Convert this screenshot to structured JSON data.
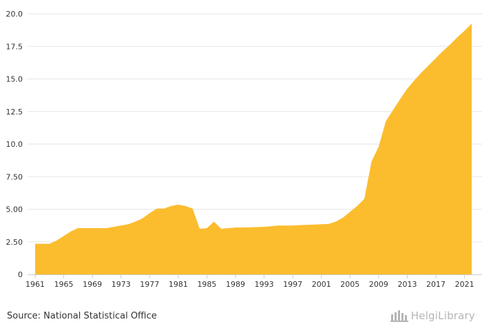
{
  "chart_data": {
    "type": "area",
    "title": "",
    "xlabel": "",
    "ylabel": "",
    "x": [
      1961,
      1962,
      1963,
      1964,
      1965,
      1966,
      1967,
      1968,
      1969,
      1970,
      1971,
      1972,
      1973,
      1974,
      1975,
      1976,
      1977,
      1978,
      1979,
      1980,
      1981,
      1982,
      1983,
      1984,
      1985,
      1986,
      1987,
      1988,
      1989,
      1990,
      1991,
      1992,
      1993,
      1994,
      1995,
      1996,
      1997,
      1998,
      1999,
      2000,
      2001,
      2002,
      2003,
      2004,
      2005,
      2006,
      2007,
      2008,
      2009,
      2010,
      2011,
      2012,
      2013,
      2014,
      2015,
      2016,
      2017,
      2018,
      2019,
      2020,
      2021,
      2022
    ],
    "series": [
      {
        "values": [
          2.35,
          2.35,
          2.35,
          2.6,
          2.95,
          3.3,
          3.55,
          3.55,
          3.55,
          3.55,
          3.55,
          3.65,
          3.75,
          3.85,
          4.05,
          4.3,
          4.7,
          5.05,
          5.05,
          5.25,
          5.35,
          5.25,
          5.05,
          3.5,
          3.55,
          4.05,
          3.5,
          3.55,
          3.6,
          3.6,
          3.62,
          3.63,
          3.65,
          3.7,
          3.75,
          3.75,
          3.75,
          3.78,
          3.8,
          3.82,
          3.85,
          3.87,
          4.05,
          4.35,
          4.8,
          5.25,
          5.8,
          8.65,
          9.8,
          11.75,
          12.6,
          13.45,
          14.25,
          14.9,
          15.5,
          16.05,
          16.6,
          17.15,
          17.65,
          18.2,
          18.7,
          19.25
        ]
      }
    ],
    "color": "#fbbd2e",
    "xlim": [
      1961,
      2022
    ],
    "ylim": [
      0,
      20
    ],
    "y_ticks": [
      0,
      2.5,
      5,
      7.5,
      10,
      12.5,
      15,
      17.5,
      20
    ],
    "y_tick_labels": [
      "0",
      "2.50",
      "5.00",
      "7.50",
      "10.0",
      "12.5",
      "15.0",
      "17.5",
      "20.0"
    ],
    "x_ticks": [
      1961,
      1965,
      1969,
      1973,
      1977,
      1981,
      1985,
      1989,
      1993,
      1997,
      2001,
      2005,
      2009,
      2013,
      2017,
      2021
    ],
    "grid": true,
    "legend": "none"
  },
  "footer": {
    "source": "Source: National Statistical Office",
    "brand": "HelgiLibrary",
    "brand_icon": "helgi-library-logo-icon"
  }
}
